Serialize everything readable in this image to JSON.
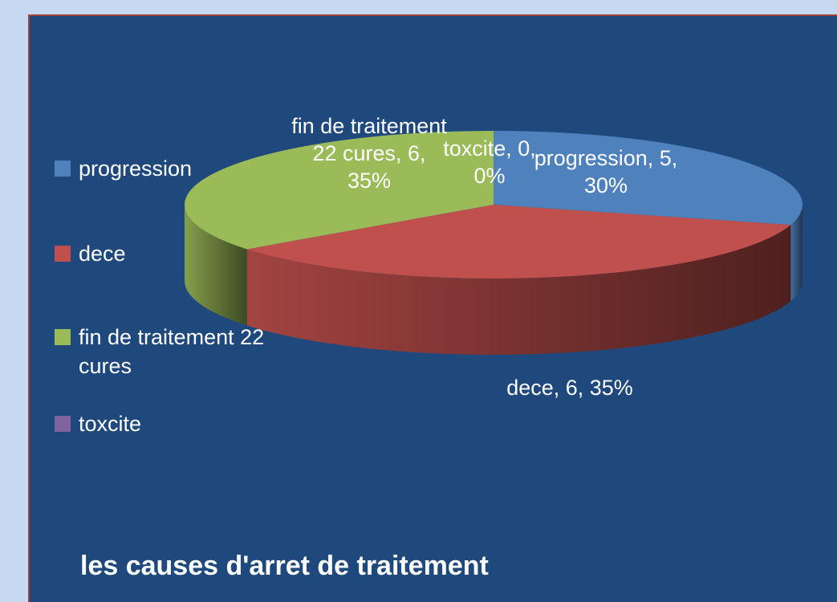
{
  "chart_data": {
    "type": "pie",
    "title": "les causes d'arret de traitement",
    "categories": [
      "progression",
      "dece",
      "fin de traitement 22 cures",
      "toxcite"
    ],
    "values": [
      5,
      6,
      6,
      0
    ],
    "value_labels": [
      "progression, 5, 30%",
      "dece, 6, 35%",
      "fin de traitement 22 cures, 6, 35%",
      "toxcite, 0, 0%"
    ],
    "colors": [
      "#4f81bd",
      "#c0504d",
      "#9bbb59",
      "#8064a2"
    ],
    "legend": "left"
  }
}
